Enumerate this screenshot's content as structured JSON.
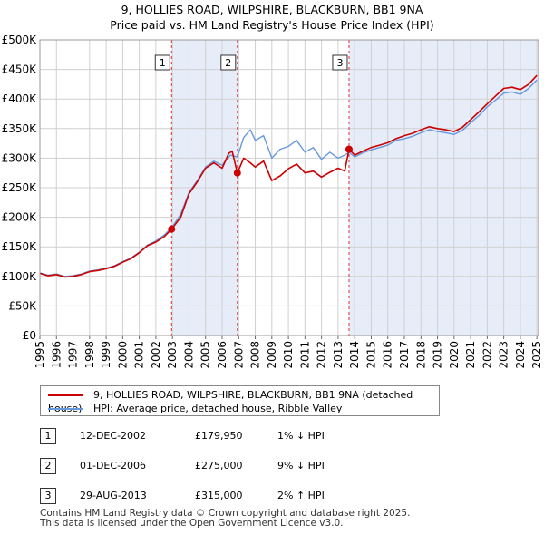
{
  "chart_data": {
    "type": "line",
    "title": "9, HOLLIES ROAD, WILPSHIRE, BLACKBURN, BB1 9NA",
    "subtitle": "Price paid vs. HM Land Registry's House Price Index (HPI)",
    "xlim": [
      1995,
      2025.1
    ],
    "ylim": [
      0,
      500000
    ],
    "x_ticks": [
      "1995",
      "1996",
      "1997",
      "1998",
      "1999",
      "2000",
      "2001",
      "2002",
      "2003",
      "2004",
      "2005",
      "2006",
      "2007",
      "2008",
      "2009",
      "2010",
      "2011",
      "2012",
      "2013",
      "2014",
      "2015",
      "2016",
      "2017",
      "2018",
      "2019",
      "2020",
      "2021",
      "2022",
      "2023",
      "2024",
      "2025"
    ],
    "y_ticks": [
      {
        "value": 0,
        "label": "£0"
      },
      {
        "value": 50000,
        "label": "£50K"
      },
      {
        "value": 100000,
        "label": "£100K"
      },
      {
        "value": 150000,
        "label": "£150K"
      },
      {
        "value": 200000,
        "label": "£200K"
      },
      {
        "value": 250000,
        "label": "£250K"
      },
      {
        "value": 300000,
        "label": "£300K"
      },
      {
        "value": 350000,
        "label": "£350K"
      },
      {
        "value": 400000,
        "label": "£400K"
      },
      {
        "value": 450000,
        "label": "£450K"
      },
      {
        "value": 500000,
        "label": "£500K"
      }
    ],
    "shaded_ranges": [
      [
        2002.95,
        2006.92
      ],
      [
        2013.66,
        2025.1
      ]
    ],
    "series": [
      {
        "name": "9, HOLLIES ROAD, WILPSHIRE, BLACKBURN, BB1 9NA (detached house)",
        "color": "#cc0000",
        "points": [
          [
            1995,
            105000
          ],
          [
            1995.5,
            101000
          ],
          [
            1996,
            103000
          ],
          [
            1996.5,
            99000
          ],
          [
            1997,
            100000
          ],
          [
            1997.5,
            103000
          ],
          [
            1998,
            108000
          ],
          [
            1998.5,
            110000
          ],
          [
            1999,
            113000
          ],
          [
            1999.5,
            117000
          ],
          [
            2000,
            124000
          ],
          [
            2000.5,
            130000
          ],
          [
            2001,
            140000
          ],
          [
            2001.5,
            152000
          ],
          [
            2002,
            158000
          ],
          [
            2002.5,
            167000
          ],
          [
            2002.95,
            179950
          ],
          [
            2003.5,
            200000
          ],
          [
            2004,
            240000
          ],
          [
            2004.5,
            260000
          ],
          [
            2005,
            283000
          ],
          [
            2005.5,
            292000
          ],
          [
            2006,
            283000
          ],
          [
            2006.4,
            308000
          ],
          [
            2006.6,
            312000
          ],
          [
            2006.92,
            275000
          ],
          [
            2007.3,
            300000
          ],
          [
            2007.7,
            292000
          ],
          [
            2008,
            285000
          ],
          [
            2008.5,
            295000
          ],
          [
            2009,
            262000
          ],
          [
            2009.5,
            270000
          ],
          [
            2010,
            282000
          ],
          [
            2010.5,
            290000
          ],
          [
            2011,
            275000
          ],
          [
            2011.5,
            278000
          ],
          [
            2012,
            268000
          ],
          [
            2012.5,
            276000
          ],
          [
            2013,
            283000
          ],
          [
            2013.4,
            278000
          ],
          [
            2013.66,
            315000
          ],
          [
            2014,
            305000
          ],
          [
            2014.5,
            312000
          ],
          [
            2015,
            318000
          ],
          [
            2015.5,
            322000
          ],
          [
            2016,
            326000
          ],
          [
            2016.5,
            333000
          ],
          [
            2017,
            338000
          ],
          [
            2017.5,
            342000
          ],
          [
            2018,
            348000
          ],
          [
            2018.5,
            353000
          ],
          [
            2019,
            350000
          ],
          [
            2019.5,
            348000
          ],
          [
            2020,
            345000
          ],
          [
            2020.5,
            352000
          ],
          [
            2021,
            365000
          ],
          [
            2021.5,
            378000
          ],
          [
            2022,
            392000
          ],
          [
            2022.5,
            405000
          ],
          [
            2023,
            418000
          ],
          [
            2023.5,
            420000
          ],
          [
            2024,
            416000
          ],
          [
            2024.5,
            425000
          ],
          [
            2025,
            440000
          ]
        ]
      },
      {
        "name": "HPI: Average price, detached house, Ribble Valley",
        "color": "#6699dd",
        "points": [
          [
            1995,
            106000
          ],
          [
            1995.5,
            102000
          ],
          [
            1996,
            104000
          ],
          [
            1996.5,
            100000
          ],
          [
            1997,
            101000
          ],
          [
            1997.5,
            104000
          ],
          [
            1998,
            109000
          ],
          [
            1998.5,
            111000
          ],
          [
            1999,
            114000
          ],
          [
            1999.5,
            118000
          ],
          [
            2000,
            125000
          ],
          [
            2000.5,
            131000
          ],
          [
            2001,
            141000
          ],
          [
            2001.5,
            153000
          ],
          [
            2002,
            160000
          ],
          [
            2002.5,
            170000
          ],
          [
            2002.95,
            182000
          ],
          [
            2003.5,
            205000
          ],
          [
            2004,
            242000
          ],
          [
            2004.5,
            262000
          ],
          [
            2005,
            285000
          ],
          [
            2005.5,
            295000
          ],
          [
            2006,
            288000
          ],
          [
            2006.5,
            305000
          ],
          [
            2006.92,
            302000
          ],
          [
            2007.3,
            335000
          ],
          [
            2007.7,
            348000
          ],
          [
            2008,
            330000
          ],
          [
            2008.5,
            338000
          ],
          [
            2009,
            300000
          ],
          [
            2009.5,
            315000
          ],
          [
            2010,
            320000
          ],
          [
            2010.5,
            330000
          ],
          [
            2011,
            310000
          ],
          [
            2011.5,
            318000
          ],
          [
            2012,
            298000
          ],
          [
            2012.5,
            310000
          ],
          [
            2013,
            300000
          ],
          [
            2013.4,
            305000
          ],
          [
            2013.66,
            310000
          ],
          [
            2014,
            302000
          ],
          [
            2014.5,
            309000
          ],
          [
            2015,
            314000
          ],
          [
            2015.5,
            318000
          ],
          [
            2016,
            322000
          ],
          [
            2016.5,
            330000
          ],
          [
            2017,
            333000
          ],
          [
            2017.5,
            337000
          ],
          [
            2018,
            343000
          ],
          [
            2018.5,
            348000
          ],
          [
            2019,
            345000
          ],
          [
            2019.5,
            343000
          ],
          [
            2020,
            340000
          ],
          [
            2020.5,
            347000
          ],
          [
            2021,
            360000
          ],
          [
            2021.5,
            372000
          ],
          [
            2022,
            387000
          ],
          [
            2022.5,
            398000
          ],
          [
            2023,
            410000
          ],
          [
            2023.5,
            412000
          ],
          [
            2024,
            408000
          ],
          [
            2024.5,
            418000
          ],
          [
            2025,
            432000
          ]
        ]
      }
    ],
    "sales": [
      {
        "label": "1",
        "x": 2002.95,
        "price": 179950
      },
      {
        "label": "2",
        "x": 2006.92,
        "price": 275000
      },
      {
        "label": "3",
        "x": 2013.66,
        "price": 315000
      }
    ]
  },
  "legend": {
    "property": "9, HOLLIES ROAD, WILPSHIRE, BLACKBURN, BB1 9NA (detached house)",
    "hpi": "HPI: Average price, detached house, Ribble Valley",
    "property_color": "#cc0000",
    "hpi_color": "#6699dd"
  },
  "sales_table": [
    {
      "num": "1",
      "date": "12-DEC-2002",
      "price": "£179,950",
      "hpi": "1% ↓ HPI"
    },
    {
      "num": "2",
      "date": "01-DEC-2006",
      "price": "£275,000",
      "hpi": "9% ↓ HPI"
    },
    {
      "num": "3",
      "date": "29-AUG-2013",
      "price": "£315,000",
      "hpi": "2% ↑ HPI"
    }
  ],
  "footer": {
    "line1": "Contains HM Land Registry data © Crown copyright and database right 2025.",
    "line2": "This data is licensed under the Open Government Licence v3.0."
  }
}
